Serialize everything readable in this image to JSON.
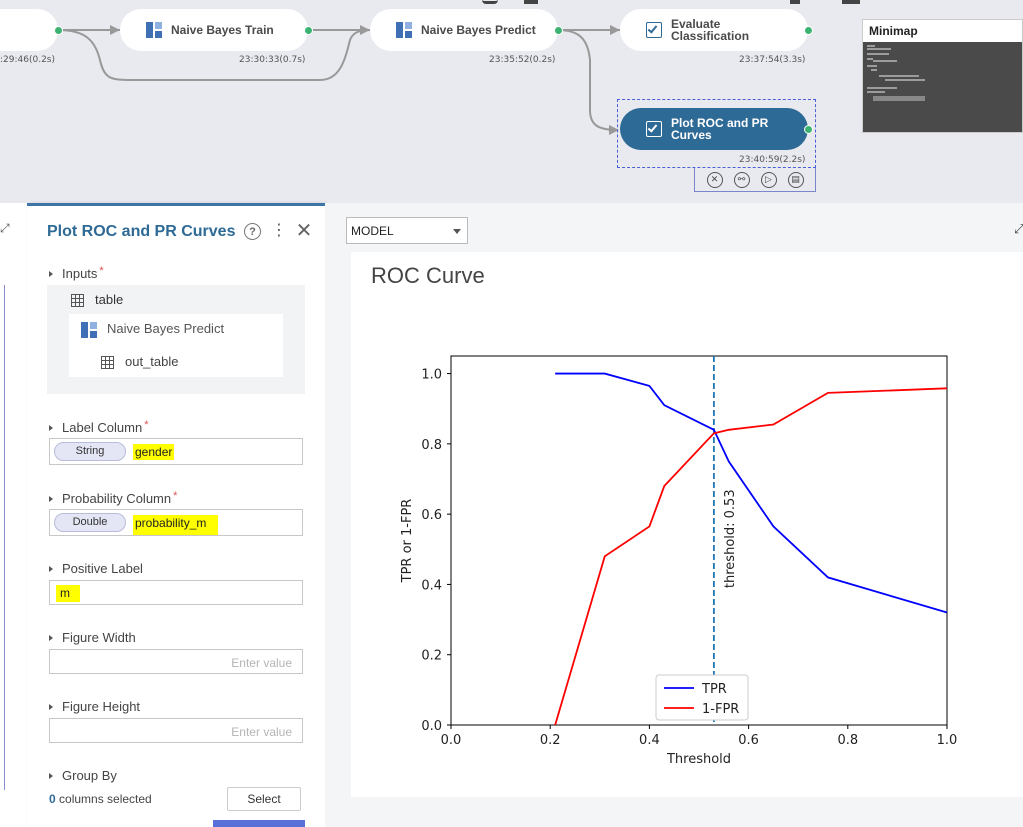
{
  "workflow": {
    "nodes": [
      {
        "id": "nb-train",
        "label": "Naive Bayes Train",
        "time": "23:30:33(0.7s)"
      },
      {
        "id": "nb-predict",
        "label": "Naive Bayes Predict",
        "time": "23:35:52(0.2s)"
      },
      {
        "id": "eval",
        "label_line1": "Evaluate",
        "label_line2": "Classification",
        "time": "23:37:54(3.3s)"
      },
      {
        "id": "plot",
        "label_line1": "Plot ROC and PR",
        "label_line2": "Curves",
        "time": "23:40:59(2.2s)"
      }
    ],
    "first_node_time": ":29:46(0.2s)",
    "minimap_title": "Minimap"
  },
  "panel": {
    "title": "Plot ROC and PR Curves",
    "inputs_label": "Inputs",
    "input_table": "table",
    "source_node": "Naive Bayes Predict",
    "source_port": "out_table",
    "label_column": {
      "label": "Label Column",
      "type": "String",
      "value": "gender"
    },
    "probability_column": {
      "label": "Probability Column",
      "type": "Double",
      "value": "probability_m"
    },
    "positive_label": {
      "label": "Positive Label",
      "value": "m"
    },
    "figure_width": {
      "label": "Figure Width",
      "placeholder": "Enter value"
    },
    "figure_height": {
      "label": "Figure Height",
      "placeholder": "Enter value"
    },
    "group_by": {
      "label": "Group By",
      "count": "0",
      "suffix": " columns selected",
      "button": "Select"
    }
  },
  "output": {
    "selector_value": "MODEL"
  },
  "chart_data": {
    "type": "line",
    "title": "ROC Curve",
    "xlabel": "Threshold",
    "ylabel": "TPR or 1-FPR",
    "xlim": [
      0.0,
      1.0
    ],
    "ylim": [
      0.0,
      1.05
    ],
    "xticks": [
      "0.0",
      "0.2",
      "0.4",
      "0.6",
      "0.8",
      "1.0"
    ],
    "yticks": [
      "0.0",
      "0.2",
      "0.4",
      "0.6",
      "0.8",
      "1.0"
    ],
    "legend_position": "bottom-center",
    "threshold_line": {
      "x": 0.53,
      "label": "threshold: 0.53",
      "color": "#1f77b4"
    },
    "series": [
      {
        "name": "TPR",
        "color": "#0000ff",
        "x": [
          0.21,
          0.31,
          0.4,
          0.43,
          0.53,
          0.56,
          0.65,
          0.76,
          1.0
        ],
        "y": [
          1.0,
          1.0,
          0.965,
          0.91,
          0.84,
          0.75,
          0.565,
          0.42,
          0.32
        ]
      },
      {
        "name": "1-FPR",
        "color": "#ff0000",
        "x": [
          0.21,
          0.31,
          0.4,
          0.43,
          0.53,
          0.56,
          0.65,
          0.76,
          1.0
        ],
        "y": [
          0.0,
          0.48,
          0.565,
          0.68,
          0.83,
          0.84,
          0.855,
          0.945,
          0.958
        ]
      }
    ]
  }
}
